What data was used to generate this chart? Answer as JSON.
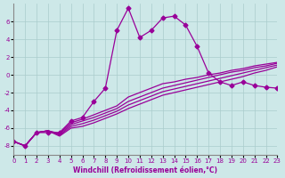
{
  "xlabel": "Windchill (Refroidissement éolien,°C)",
  "ylabel": "",
  "background_color": "#cde8e8",
  "line_color": "#990099",
  "grid_color": "#aacccc",
  "xlim": [
    0,
    23
  ],
  "ylim": [
    -9,
    8
  ],
  "yticks": [
    -8,
    -6,
    -4,
    -2,
    0,
    2,
    4,
    6
  ],
  "xticks": [
    0,
    1,
    2,
    3,
    4,
    5,
    6,
    7,
    8,
    9,
    10,
    11,
    12,
    13,
    14,
    15,
    16,
    17,
    18,
    19,
    20,
    21,
    22,
    23
  ],
  "series": [
    [
      0,
      1,
      2,
      3,
      4,
      5,
      6,
      7,
      8,
      9,
      10,
      11,
      12,
      13,
      14,
      15,
      16,
      17,
      18,
      19,
      20,
      21,
      22,
      23
    ],
    [
      -7.5,
      -8.0,
      -6.5,
      -6.5,
      -6.5,
      -5.2,
      -4.8,
      -3.0,
      -1.5,
      5.0,
      7.5,
      4.2,
      5.0,
      6.4,
      6.6,
      5.6,
      3.2,
      0.2,
      -0.8,
      -1.2,
      -0.8,
      -1.2,
      -1.4,
      -1.5
    ],
    [
      -7.5,
      -8.0,
      -6.5,
      -6.3,
      -6.6,
      -5.4,
      -5.0,
      -4.5,
      -4.0,
      -3.5,
      -2.5,
      -2.0,
      -1.5,
      -1.0,
      -0.8,
      -0.5,
      -0.3,
      0.0,
      0.2,
      0.5,
      0.7,
      1.0,
      1.2,
      1.4
    ],
    [
      -7.5,
      -8.0,
      -6.5,
      -6.3,
      -6.7,
      -5.6,
      -5.2,
      -4.8,
      -4.3,
      -3.8,
      -3.0,
      -2.5,
      -2.0,
      -1.5,
      -1.2,
      -0.9,
      -0.6,
      -0.3,
      0.0,
      0.3,
      0.5,
      0.8,
      1.0,
      1.3
    ],
    [
      -7.5,
      -8.0,
      -6.5,
      -6.3,
      -6.8,
      -5.8,
      -5.5,
      -5.1,
      -4.6,
      -4.1,
      -3.4,
      -2.9,
      -2.4,
      -1.9,
      -1.6,
      -1.3,
      -1.0,
      -0.7,
      -0.4,
      -0.1,
      0.2,
      0.5,
      0.8,
      1.1
    ],
    [
      -7.5,
      -8.0,
      -6.5,
      -6.3,
      -6.9,
      -6.0,
      -5.8,
      -5.4,
      -4.9,
      -4.4,
      -3.8,
      -3.3,
      -2.8,
      -2.3,
      -2.0,
      -1.7,
      -1.4,
      -1.1,
      -0.8,
      -0.5,
      -0.2,
      0.2,
      0.5,
      0.9
    ]
  ]
}
